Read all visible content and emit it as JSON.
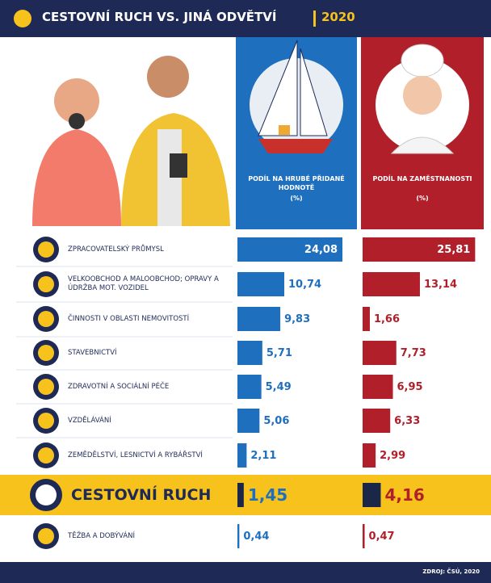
{
  "chart_data": {
    "type": "bar",
    "title": "CESTOVNÍ RUCH VS. JINÁ ODVĚTVÍ",
    "subtitle": "2020",
    "unit": "(%)",
    "source": "ZDROJ: ČSÚ, 2020",
    "categories": [
      "ZPRACOVATELSKÝ PRŮMYSL",
      "VELKOOBCHOD A MALOOBCHOD; OPRAVY A ÚDRŽBA MOT. VOZIDEL",
      "ČINNOSTI V OBLASTI NEMOVITOSTÍ",
      "STAVEBNICTVÍ",
      "ZDRAVOTNÍ A SOCIÁLNÍ PÉČE",
      "VZDĚLÁVÁNÍ",
      "ZEMĚDĚLSTVÍ, LESNICTVÍ A RYBÁŘSTVÍ",
      "CESTOVNÍ RUCH",
      "TĚŽBA A DOBÝVÁNÍ"
    ],
    "highlight": 7,
    "highlight_color": "#f7c21c",
    "highlight_bar_color": "#1b2748",
    "series": [
      {
        "name": "PODÍL NA HRUBÉ PŘIDANÉ HODNOTĚ",
        "color": "#1f6fbf",
        "values": [
          24.08,
          10.74,
          9.83,
          5.71,
          5.49,
          5.06,
          2.11,
          1.45,
          0.44
        ],
        "value_labels": [
          "24,08",
          "10,74",
          "9,83",
          "5,71",
          "5,49",
          "5,06",
          "2,11",
          "1,45",
          "0,44"
        ]
      },
      {
        "name": "PODÍL NA ZAMĚSTNANOSTI",
        "color": "#b01f2a",
        "values": [
          25.81,
          13.14,
          1.66,
          7.73,
          6.95,
          6.33,
          2.99,
          4.16,
          0.47
        ],
        "value_labels": [
          "25,81",
          "13,14",
          "1,66",
          "7,73",
          "6,95",
          "6,33",
          "2,99",
          "4,16",
          "0,47"
        ]
      }
    ]
  }
}
